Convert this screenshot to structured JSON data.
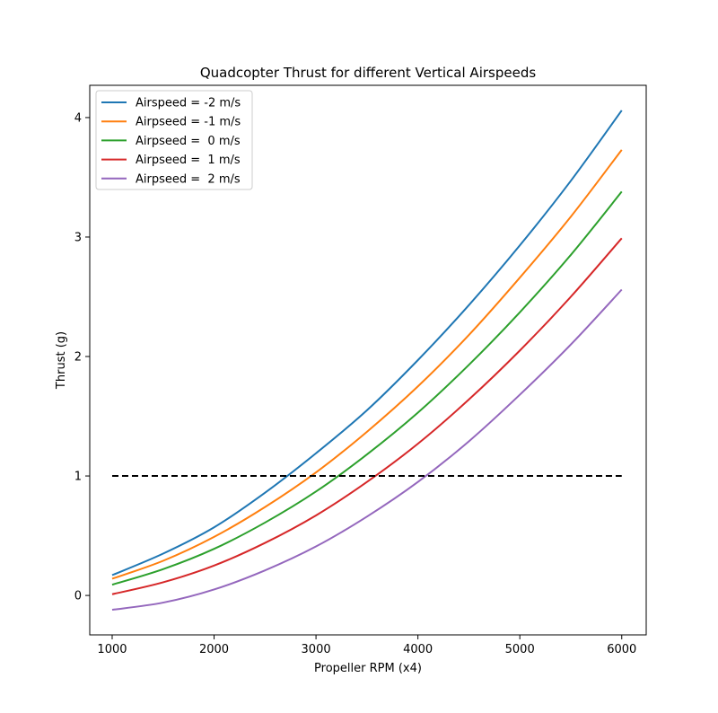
{
  "chart_data": {
    "type": "line",
    "title": "Quadcopter Thrust for different Vertical Airspeeds",
    "xlabel": "Propeller RPM (x4)",
    "ylabel": "Thrust (g)",
    "xlim": [
      780,
      6240
    ],
    "ylim": [
      -0.33,
      4.27
    ],
    "xticks": [
      1000,
      2000,
      3000,
      4000,
      5000,
      6000
    ],
    "yticks": [
      0,
      1,
      2,
      3,
      4
    ],
    "grid": false,
    "legend_position": "top-left",
    "x": [
      1000,
      1500,
      2000,
      2500,
      3000,
      3500,
      4000,
      4500,
      5000,
      5500,
      6000
    ],
    "series": [
      {
        "name": "Airspeed = -2 m/s",
        "color": "#1f77b4",
        "values": [
          0.17,
          0.35,
          0.57,
          0.86,
          1.19,
          1.55,
          1.97,
          2.43,
          2.93,
          3.47,
          4.06
        ]
      },
      {
        "name": "Airpseed = -1 m/s",
        "color": "#ff7f0e",
        "values": [
          0.14,
          0.29,
          0.49,
          0.74,
          1.03,
          1.37,
          1.75,
          2.18,
          2.66,
          3.17,
          3.73
        ]
      },
      {
        "name": "Airpseed =  0 m/s",
        "color": "#2ca02c",
        "values": [
          0.09,
          0.22,
          0.39,
          0.61,
          0.87,
          1.18,
          1.53,
          1.93,
          2.37,
          2.85,
          3.38
        ]
      },
      {
        "name": "Airpseed =  1 m/s",
        "color": "#d62728",
        "values": [
          0.01,
          0.11,
          0.25,
          0.44,
          0.67,
          0.95,
          1.27,
          1.64,
          2.05,
          2.5,
          2.99
        ]
      },
      {
        "name": "Airpseed =  2 m/s",
        "color": "#9467bd",
        "values": [
          -0.12,
          -0.06,
          0.05,
          0.21,
          0.41,
          0.66,
          0.95,
          1.29,
          1.68,
          2.1,
          2.56
        ]
      }
    ],
    "reference_line": {
      "y": 1,
      "x_range": [
        1000,
        6000
      ],
      "style": "dashed",
      "color": "#000000"
    }
  }
}
